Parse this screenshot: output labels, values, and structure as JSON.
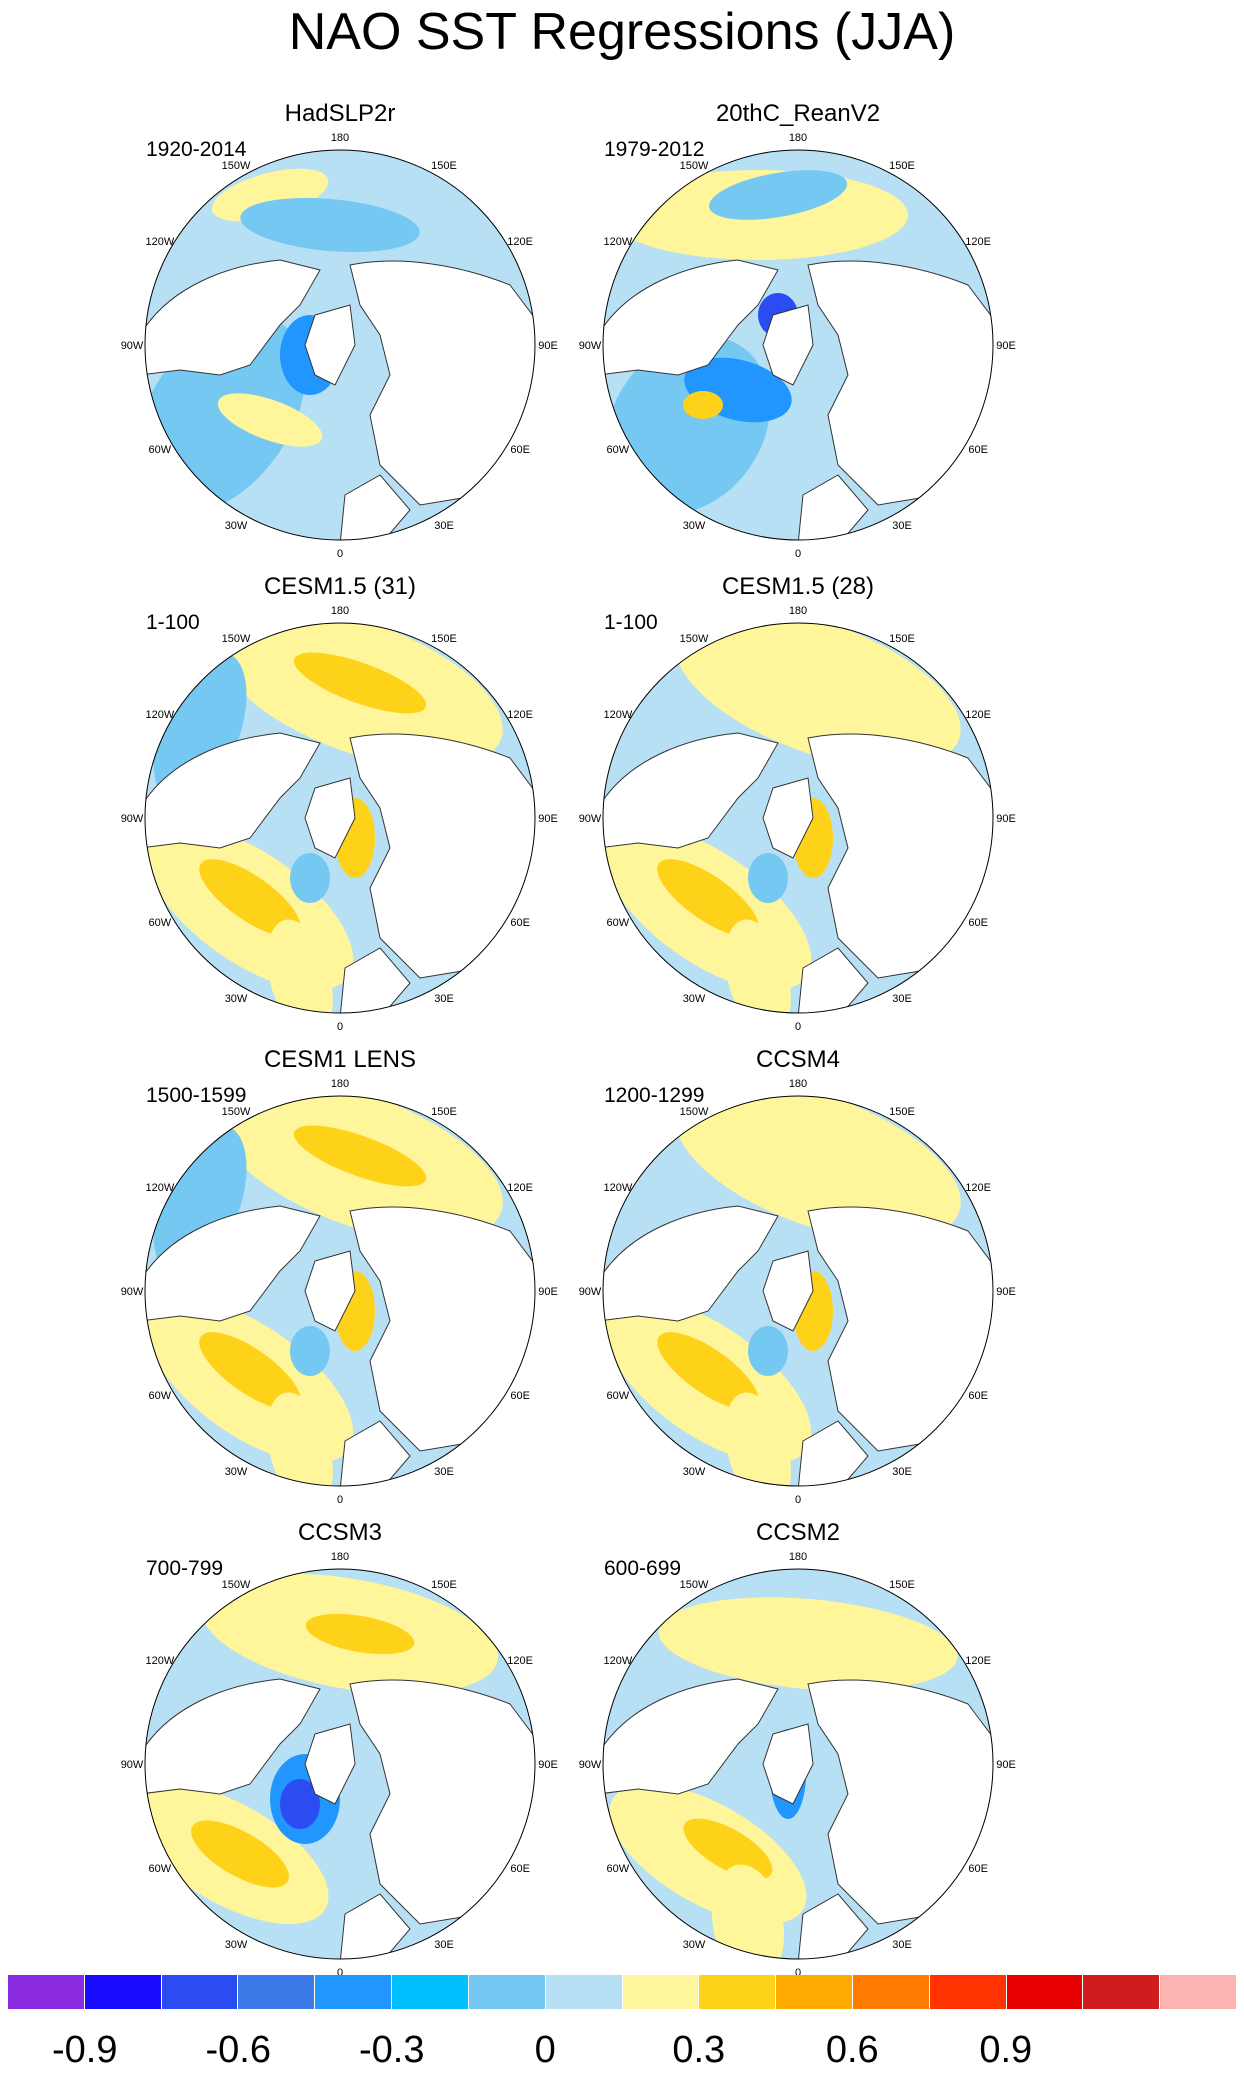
{
  "figure": {
    "title": "NAO SST Regressions (JJA)"
  },
  "lon_labels": {
    "top": "180",
    "upper_left": "150W",
    "upper_right": "150E",
    "left_upper": "120W",
    "right_upper": "120E",
    "left": "90W",
    "right": "90E",
    "left_lower": "60W",
    "right_lower": "60E",
    "lower_left": "30W",
    "lower_right": "30E",
    "bottom": "0"
  },
  "panels": [
    {
      "title": "HadSLP2r",
      "period": "1920-2014",
      "style": "obs1"
    },
    {
      "title": "20thC_ReanV2",
      "period": "1979-2012",
      "style": "obs2"
    },
    {
      "title": "CESM1.5 (31)",
      "period": "1-100",
      "style": "warmnorth"
    },
    {
      "title": "CESM1.5 (28)",
      "period": "1-100",
      "style": "warmnorth2"
    },
    {
      "title": "CESM1 LENS",
      "period": "1500-1599",
      "style": "warmnorth"
    },
    {
      "title": "CCSM4",
      "period": "1200-1299",
      "style": "warmnorth2"
    },
    {
      "title": "CCSM3",
      "period": "700-799",
      "style": "ccsm3"
    },
    {
      "title": "CCSM2",
      "period": "600-699",
      "style": "ccsm2"
    }
  ],
  "colorbar": {
    "colors": [
      "#8a2be2",
      "#1a0dff",
      "#2a4cf0",
      "#3a7ae8",
      "#2196ff",
      "#00bfff",
      "#74c8f2",
      "#b8e0f5",
      "#fff59a",
      "#ffd21a",
      "#ffaa00",
      "#ff7c00",
      "#ff3300",
      "#e80000",
      "#cf1c1c",
      "#ffb4b4"
    ],
    "tick_labels": [
      "-0.9",
      "-0.6",
      "-0.3",
      "0",
      "0.3",
      "0.6",
      "0.9"
    ],
    "tick_values": [
      -0.9,
      -0.6,
      -0.3,
      0,
      0.3,
      0.6,
      0.9
    ],
    "levels_min": -1.05,
    "levels_step": 0.15
  },
  "palette": {
    "land": "#ffffff",
    "ocean_neg1": "#b8e0f5",
    "ocean_neg2": "#74c8f2",
    "ocean_neg3": "#2196ff",
    "ocean_neg4": "#2a4cf0",
    "ocean_pos1": "#fff59a",
    "ocean_pos2": "#ffd21a",
    "ocean_pos3": "#ffaa00",
    "ocean_pos4": "#ff7c00",
    "coast": "#333333"
  }
}
